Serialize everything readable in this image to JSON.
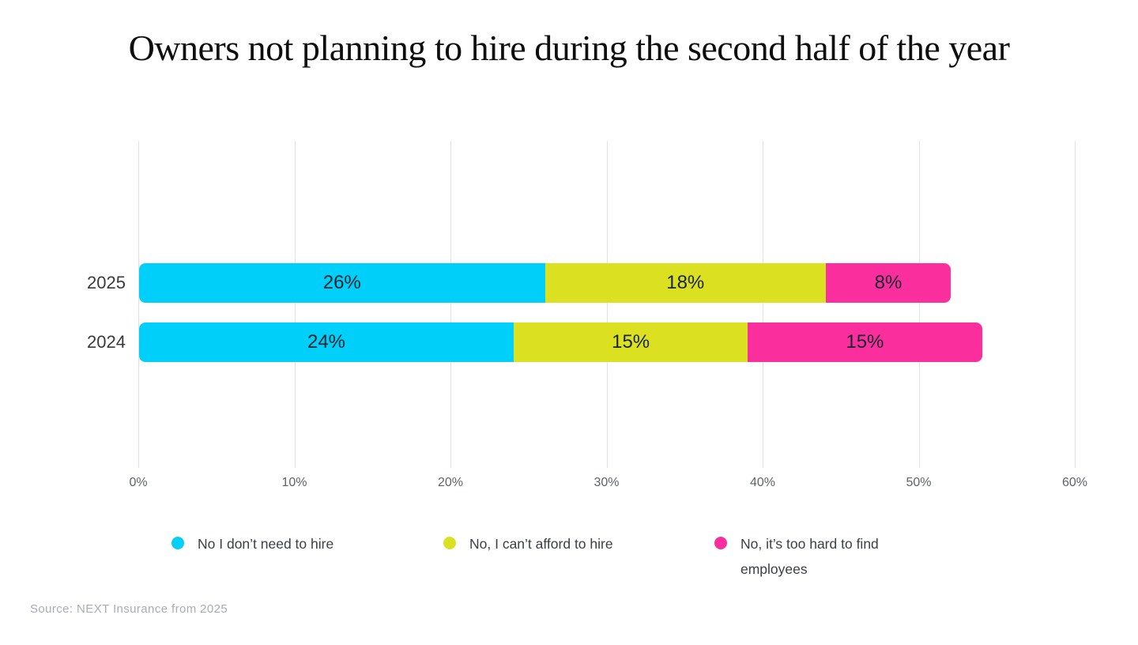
{
  "title": "Owners not planning to hire during the second half of the year",
  "source": "Source: NEXT Insurance from 2025",
  "chart_data": {
    "type": "bar",
    "orientation": "horizontal",
    "stacked": true,
    "title": "Owners not planning to hire during the second half of the year",
    "categories": [
      "2025",
      "2024"
    ],
    "series": [
      {
        "name": "No I don’t need to hire",
        "color": "#00CFFA",
        "values": [
          26,
          24
        ]
      },
      {
        "name": "No, I can’t afford to hire",
        "color": "#DBE120",
        "values": [
          18,
          15
        ]
      },
      {
        "name": "No, it’s too hard to find employees",
        "color": "#FA2E9D",
        "values": [
          8,
          15
        ]
      }
    ],
    "value_suffix": "%",
    "xlim": [
      0,
      60
    ],
    "x_tick_values": [
      0,
      10,
      20,
      30,
      40,
      50,
      60
    ],
    "x_ticks": [
      "0%",
      "10%",
      "20%",
      "30%",
      "40%",
      "50%",
      "60%"
    ],
    "grid": true,
    "legend_position": "bottom"
  }
}
